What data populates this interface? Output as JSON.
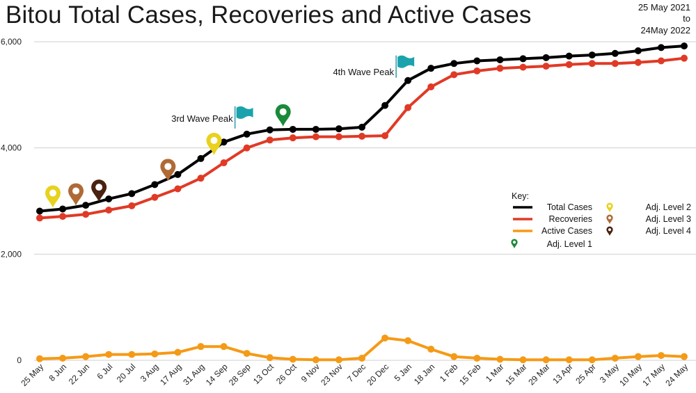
{
  "chart_data": {
    "type": "line",
    "title": "Bitou Total Cases, Recoveries and Active Cases",
    "date_range": {
      "start": "25 May 2021",
      "to": "to",
      "end": "24May 2022"
    },
    "categories": [
      "25 May",
      "8 Jun",
      "22 Jun",
      "6 Jul",
      "20 Jul",
      "3 Aug",
      "17 Aug",
      "31 Aug",
      "14 Sep",
      "28 Sep",
      "13 Oct",
      "26 Oct",
      "9 Nov",
      "23 Nov",
      "7 Dec",
      "20 Dec",
      "5 Jan",
      "18 Jan",
      "1 Feb",
      "15 Feb",
      "1 Mar",
      "15 Mar",
      "29 Mar",
      "13 Apr",
      "25 Apr",
      "3 May",
      "10 May",
      "17 May",
      "24 May"
    ],
    "y_ticks": [
      0,
      2000,
      4000,
      6000
    ],
    "y_tick_labels": [
      "0",
      "2,000",
      "4,000",
      "6,000"
    ],
    "ylim": [
      0,
      6000
    ],
    "grid": true,
    "legend_position": "right",
    "series": [
      {
        "name": "Total Cases",
        "color": "#000000",
        "values": [
          2810,
          2850,
          2920,
          3040,
          3140,
          3310,
          3500,
          3800,
          4110,
          4260,
          4340,
          4350,
          4350,
          4360,
          4390,
          4800,
          5270,
          5500,
          5590,
          5640,
          5660,
          5680,
          5700,
          5730,
          5750,
          5780,
          5830,
          5890,
          5920
        ]
      },
      {
        "name": "Recoveries",
        "color": "#e03a26",
        "values": [
          2680,
          2710,
          2750,
          2830,
          2910,
          3070,
          3230,
          3430,
          3720,
          4000,
          4150,
          4190,
          4210,
          4210,
          4220,
          4230,
          4760,
          5150,
          5380,
          5450,
          5500,
          5520,
          5540,
          5570,
          5590,
          5590,
          5610,
          5640,
          5690
        ]
      },
      {
        "name": "Active Cases",
        "color": "#f59a16",
        "values": [
          30,
          40,
          70,
          110,
          110,
          120,
          150,
          260,
          260,
          130,
          50,
          20,
          10,
          10,
          40,
          420,
          370,
          210,
          70,
          40,
          20,
          10,
          10,
          10,
          10,
          40,
          70,
          90,
          70
        ]
      }
    ],
    "legend": {
      "title": "Key:",
      "left": [
        "Total Cases",
        "Recoveries",
        "Active Cases"
      ],
      "level1": "Adj. Level 1",
      "right": [
        "Adj. Level 2",
        "Adj. Level 3",
        "Adj. Level 4"
      ]
    },
    "annotations": {
      "third_wave": {
        "label": "3rd Wave Peak",
        "x": "28 Sep"
      },
      "fourth_wave": {
        "label": "4th Wave Peak",
        "x": "5 Jan"
      },
      "markers": [
        {
          "x": "25 May",
          "level": "Adj. Level 2",
          "color": "#e8d21d"
        },
        {
          "x": "8 Jun",
          "level": "Adj. Level 3",
          "color": "#b06a35"
        },
        {
          "x": "22 Jun",
          "level": "Adj. Level 4",
          "color": "#4a2210"
        },
        {
          "x": "3 Aug",
          "level": "Adj. Level 3",
          "color": "#b06a35"
        },
        {
          "x": "31 Aug",
          "level": "Adj. Level 2",
          "color": "#e8d21d"
        },
        {
          "x": "13 Oct",
          "level": "Adj. Level 1",
          "color": "#1a8a3a"
        }
      ]
    }
  }
}
